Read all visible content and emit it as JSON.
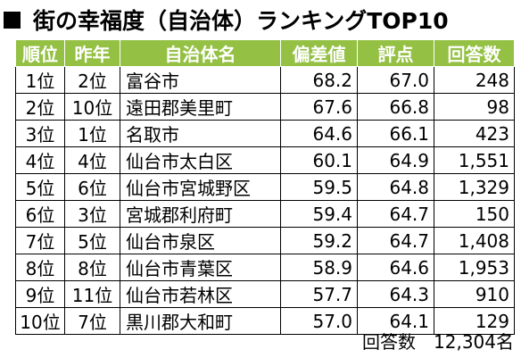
{
  "title": "街の幸福度（自治体）ランキングTOP10",
  "table": {
    "headers": [
      "順位",
      "昨年",
      "自治体名",
      "偏差値",
      "評点",
      "回答数"
    ],
    "rows": [
      [
        "1位",
        "2位",
        "富谷市",
        "68.2",
        "67.0",
        "248"
      ],
      [
        "2位",
        "10位",
        "遠田郡美里町",
        "67.6",
        "66.8",
        "98"
      ],
      [
        "3位",
        "1位",
        "名取市",
        "64.6",
        "66.1",
        "423"
      ],
      [
        "4位",
        "4位",
        "仙台市太白区",
        "60.1",
        "64.9",
        "1,551"
      ],
      [
        "5位",
        "6位",
        "仙台市宮城野区",
        "59.5",
        "64.8",
        "1,329"
      ],
      [
        "6位",
        "3位",
        "宮城郡利府町",
        "59.4",
        "64.7",
        "150"
      ],
      [
        "7位",
        "5位",
        "仙台市泉区",
        "59.2",
        "64.7",
        "1,408"
      ],
      [
        "8位",
        "8位",
        "仙台市青葉区",
        "58.9",
        "64.6",
        "1,953"
      ],
      [
        "9位",
        "11位",
        "仙台市若林区",
        "57.7",
        "64.3",
        "910"
      ],
      [
        "10位",
        "7位",
        "黒川郡大和町",
        "57.0",
        "64.1",
        "129"
      ]
    ]
  },
  "footer": "回答数　12,304名",
  "colors": {
    "header_bg": "#94c044",
    "header_text": "#ffffff"
  }
}
